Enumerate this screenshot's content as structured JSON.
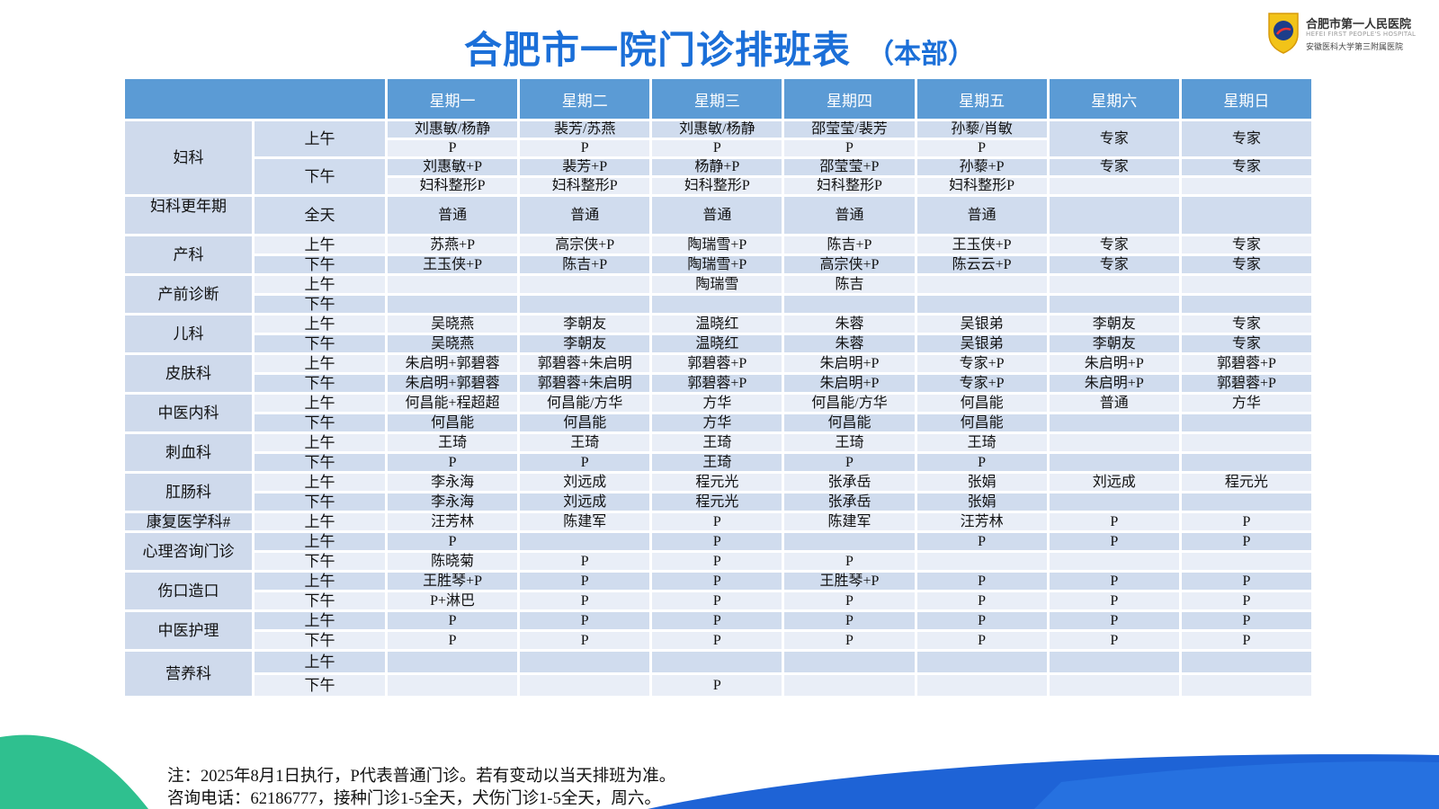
{
  "header": {
    "title": "合肥市一院门诊排班表",
    "subtitle": "（本部）",
    "title_color": "#1b6fd8",
    "logo": {
      "name_cn": "合肥市第一人民医院",
      "name_en": "HEFEI FIRST PEOPLE'S HOSPITAL",
      "affiliation": "安徽医科大学第三附属医院"
    }
  },
  "table": {
    "header_color": "#5b9bd5",
    "corner": "",
    "days": [
      "星期一",
      "星期二",
      "星期三",
      "星期四",
      "星期五",
      "星期六",
      "星期日"
    ],
    "departments": [
      {
        "name": "妇科",
        "rows": [
          {
            "period": "上午",
            "cells": [
              "刘惠敏/杨静",
              "裴芳/苏燕",
              "刘惠敏/杨静",
              "邵莹莹/裴芳",
              "孙藜/肖敏",
              "专家",
              "专家"
            ]
          },
          {
            "period": null,
            "cells": [
              "P",
              "P",
              "P",
              "P",
              "P",
              null,
              null
            ]
          },
          {
            "period": "下午",
            "cells": [
              "刘惠敏+P",
              "裴芳+P",
              "杨静+P",
              "邵莹莹+P",
              "孙藜+P",
              "专家",
              "专家"
            ]
          },
          {
            "period": null,
            "cells": [
              "妇科整形P",
              "妇科整形P",
              "妇科整形P",
              "妇科整形P",
              "妇科整形P",
              "",
              ""
            ]
          }
        ]
      },
      {
        "name": "妇科更年期",
        "rows": [
          {
            "period": "全天",
            "cells": [
              "普通",
              "普通",
              "普通",
              "普通",
              "普通",
              "",
              ""
            ]
          }
        ]
      },
      {
        "name": "产科",
        "rows": [
          {
            "period": "上午",
            "cells": [
              "苏燕+P",
              "高宗侠+P",
              "陶瑞雪+P",
              "陈吉+P",
              "王玉侠+P",
              "专家",
              "专家"
            ]
          },
          {
            "period": "下午",
            "cells": [
              "王玉侠+P",
              "陈吉+P",
              "陶瑞雪+P",
              "高宗侠+P",
              "陈云云+P",
              "专家",
              "专家"
            ]
          }
        ]
      },
      {
        "name": "产前诊断",
        "rows": [
          {
            "period": "上午",
            "cells": [
              "",
              "",
              "陶瑞雪",
              "陈吉",
              "",
              "",
              ""
            ]
          },
          {
            "period": "下午",
            "cells": [
              "",
              "",
              "",
              "",
              "",
              "",
              ""
            ]
          }
        ]
      },
      {
        "name": "儿科",
        "rows": [
          {
            "period": "上午",
            "cells": [
              "吴晓燕",
              "李朝友",
              "温晓红",
              "朱蓉",
              "吴银弟",
              "李朝友",
              "专家"
            ]
          },
          {
            "period": "下午",
            "cells": [
              "吴晓燕",
              "李朝友",
              "温晓红",
              "朱蓉",
              "吴银弟",
              "李朝友",
              "专家"
            ]
          }
        ]
      },
      {
        "name": "皮肤科",
        "rows": [
          {
            "period": "上午",
            "cells": [
              "朱启明+郭碧蓉",
              "郭碧蓉+朱启明",
              "郭碧蓉+P",
              "朱启明+P",
              "专家+P",
              "朱启明+P",
              "郭碧蓉+P"
            ]
          },
          {
            "period": "下午",
            "cells": [
              "朱启明+郭碧蓉",
              "郭碧蓉+朱启明",
              "郭碧蓉+P",
              "朱启明+P",
              "专家+P",
              "朱启明+P",
              "郭碧蓉+P"
            ]
          }
        ]
      },
      {
        "name": "中医内科",
        "rows": [
          {
            "period": "上午",
            "cells": [
              "何昌能+程超超",
              "何昌能/方华",
              "方华",
              "何昌能/方华",
              "何昌能",
              "普通",
              "方华"
            ]
          },
          {
            "period": "下午",
            "cells": [
              "何昌能",
              "何昌能",
              "方华",
              "何昌能",
              "何昌能",
              "",
              ""
            ]
          }
        ]
      },
      {
        "name": "刺血科",
        "rows": [
          {
            "period": "上午",
            "cells": [
              "王琦",
              "王琦",
              "王琦",
              "王琦",
              "王琦",
              "",
              ""
            ]
          },
          {
            "period": "下午",
            "cells": [
              "P",
              "P",
              "王琦",
              "P",
              "P",
              "",
              ""
            ]
          }
        ]
      },
      {
        "name": "肛肠科",
        "rows": [
          {
            "period": "上午",
            "cells": [
              "李永海",
              "刘远成",
              "程元光",
              "张承岳",
              "张娟",
              "刘远成",
              "程元光"
            ]
          },
          {
            "period": "下午",
            "cells": [
              "李永海",
              "刘远成",
              "程元光",
              "张承岳",
              "张娟",
              "",
              ""
            ]
          }
        ]
      },
      {
        "name": "康复医学科#",
        "rows": [
          {
            "period": "上午",
            "cells": [
              "汪芳林",
              "陈建军",
              "P",
              "陈建军",
              "汪芳林",
              "P",
              "P"
            ]
          }
        ]
      },
      {
        "name": "心理咨询门诊",
        "rows": [
          {
            "period": "上午",
            "cells": [
              "P",
              "",
              "P",
              "",
              "P",
              "P",
              "P"
            ]
          },
          {
            "period": "下午",
            "cells": [
              "陈晓菊",
              "P",
              "P",
              "P",
              "",
              "",
              ""
            ]
          }
        ]
      },
      {
        "name": "伤口造口",
        "rows": [
          {
            "period": "上午",
            "cells": [
              "王胜琴+P",
              "P",
              "P",
              "王胜琴+P",
              "P",
              "P",
              "P"
            ]
          },
          {
            "period": "下午",
            "cells": [
              "P+淋巴",
              "P",
              "P",
              "P",
              "P",
              "P",
              "P"
            ]
          }
        ]
      },
      {
        "name": "中医护理",
        "rows": [
          {
            "period": "上午",
            "cells": [
              "P",
              "P",
              "P",
              "P",
              "P",
              "P",
              "P"
            ]
          },
          {
            "period": "下午",
            "cells": [
              "P",
              "P",
              "P",
              "P",
              "P",
              "P",
              "P"
            ]
          }
        ]
      },
      {
        "name": "营养科",
        "rows": [
          {
            "period": "上午",
            "cells": [
              "",
              "",
              "",
              "",
              "",
              "",
              ""
            ]
          },
          {
            "period": "下午",
            "cells": [
              "",
              "",
              "P",
              "",
              "",
              "",
              ""
            ]
          }
        ]
      }
    ]
  },
  "notes": [
    "注：2025年8月1日执行，P代表普通门诊。若有变动以当天排班为准。",
    "咨询电话：62186777，接种门诊1-5全天，犬伤门诊1-5全天，周六。"
  ]
}
